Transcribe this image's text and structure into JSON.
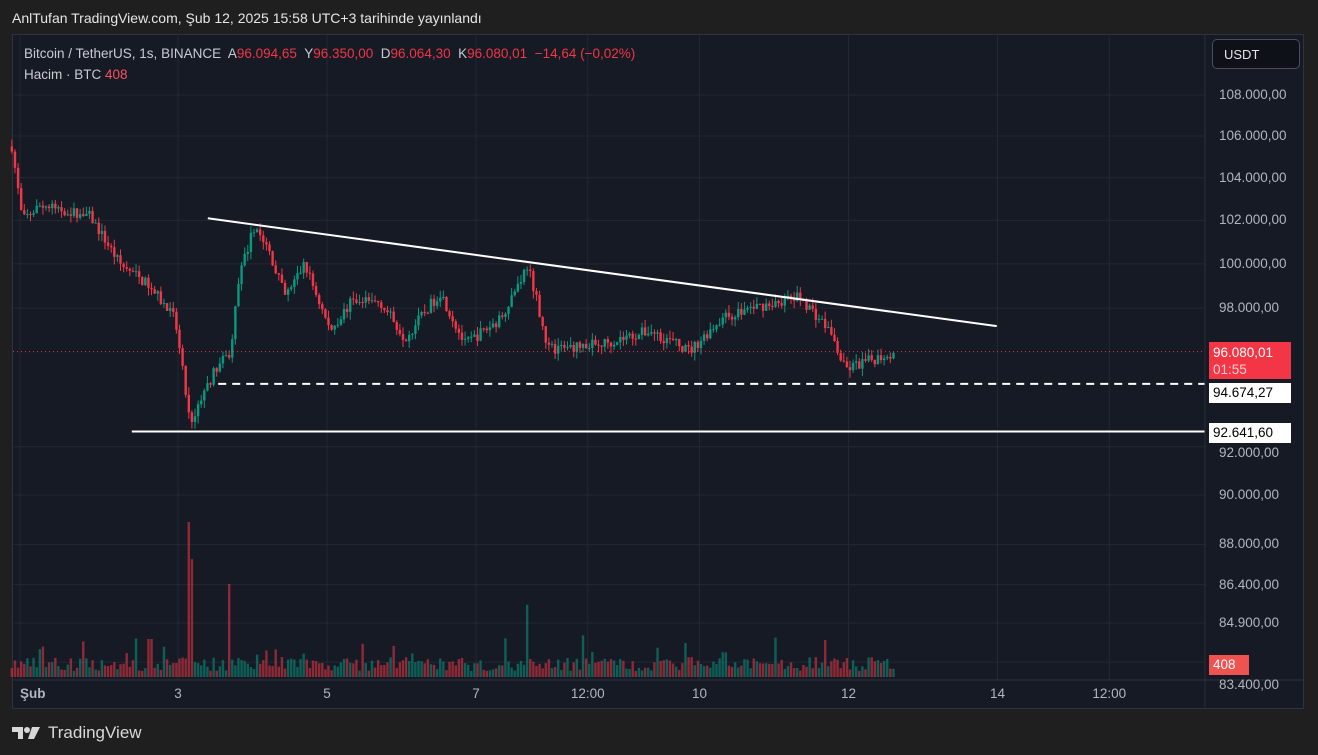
{
  "published_title": "AnlTufan TradingView.com, Şub 12, 2025 15:58 UTC+3 tarihinde yayınlandı",
  "legend": {
    "symbol": "Bitcoin / TetherUS, 1s, BINANCE",
    "open_label": "A",
    "open": "96.094,65",
    "high_label": "Y",
    "high": "96.350,00",
    "low_label": "D",
    "low": "96.064,30",
    "close_label": "K",
    "close": "96.080,01",
    "change": "−14,64 (−0,02%)",
    "volume_label": "Hacim · BTC",
    "volume": "408"
  },
  "currency_button": "USDT",
  "badges": {
    "last_price": "96.080,01",
    "countdown": "01:55",
    "support_level": "94.674,27",
    "lower_level": "92.641,60",
    "volume": "408"
  },
  "branding": "TradingView",
  "colors": {
    "up": "#089981",
    "down": "#f23645",
    "background": "#161a25",
    "lines": "#ffffff"
  },
  "chart_data": {
    "type": "candlestick",
    "title": "Bitcoin / TetherUS, 1s, BINANCE",
    "y_scale": "log",
    "ylim": [
      82500,
      110500
    ],
    "y_ticks": [
      {
        "value": 108000,
        "label": "108.000,00"
      },
      {
        "value": 106000,
        "label": "106.000,00"
      },
      {
        "value": 104000,
        "label": "104.000,00"
      },
      {
        "value": 102000,
        "label": "102.000,00"
      },
      {
        "value": 100000,
        "label": "100.000,00"
      },
      {
        "value": 98000,
        "label": "98.000,00"
      },
      {
        "value": 92000,
        "label": "92.000,00"
      },
      {
        "value": 90000,
        "label": "90.000,00"
      },
      {
        "value": 88000,
        "label": "88.000,00"
      },
      {
        "value": 86400,
        "label": "86.400,00"
      },
      {
        "value": 84900,
        "label": "84.900,00"
      },
      {
        "value": 83400,
        "label": "83.400,00"
      }
    ],
    "x_ticks": [
      {
        "day": 0.88,
        "label": "Şub"
      },
      {
        "day": 3,
        "label": "3"
      },
      {
        "day": 5,
        "label": "5"
      },
      {
        "day": 7,
        "label": "7"
      },
      {
        "day": 8.5,
        "label": "12:00"
      },
      {
        "day": 10,
        "label": "10"
      },
      {
        "day": 12,
        "label": "12"
      },
      {
        "day": 14,
        "label": "14"
      },
      {
        "day": 15.5,
        "label": "12:00"
      }
    ],
    "xlim_days": [
      0.7,
      16.5
    ],
    "price_path": [
      [
        0.77,
        105500
      ],
      [
        0.91,
        102000
      ],
      [
        1.15,
        102700
      ],
      [
        1.82,
        102200
      ],
      [
        2.22,
        100000
      ],
      [
        2.62,
        99000
      ],
      [
        2.96,
        97500
      ],
      [
        3.16,
        93000
      ],
      [
        3.3,
        94000
      ],
      [
        3.5,
        95300
      ],
      [
        3.7,
        96000
      ],
      [
        3.83,
        99500
      ],
      [
        4.03,
        101800
      ],
      [
        4.23,
        100500
      ],
      [
        4.44,
        98500
      ],
      [
        4.7,
        100000
      ],
      [
        5.04,
        97000
      ],
      [
        5.31,
        98200
      ],
      [
        5.71,
        98300
      ],
      [
        6.05,
        96700
      ],
      [
        6.52,
        98700
      ],
      [
        6.85,
        96400
      ],
      [
        7.32,
        97500
      ],
      [
        7.7,
        100000
      ],
      [
        7.97,
        96200
      ],
      [
        8.66,
        96400
      ],
      [
        9.34,
        97000
      ],
      [
        9.87,
        96100
      ],
      [
        10.28,
        97500
      ],
      [
        10.68,
        98000
      ],
      [
        11.35,
        98500
      ],
      [
        11.75,
        97000
      ],
      [
        11.95,
        95300
      ],
      [
        12.29,
        95700
      ],
      [
        12.62,
        96080
      ]
    ],
    "volume_spikes": [
      [
        3.16,
        408
      ],
      [
        3.2,
        310
      ],
      [
        3.7,
        245
      ],
      [
        7.7,
        190
      ],
      [
        1.2,
        80
      ],
      [
        2.62,
        100
      ]
    ],
    "last_price": 96080.01,
    "horizontal_levels": [
      {
        "price": 94674.27,
        "style": "dashed",
        "from_day": 3.54
      },
      {
        "price": 92641.6,
        "style": "solid",
        "from_day": 2.38
      }
    ],
    "trendline": {
      "from": [
        3.4,
        102100
      ],
      "to": [
        13.99,
        97200
      ]
    }
  }
}
